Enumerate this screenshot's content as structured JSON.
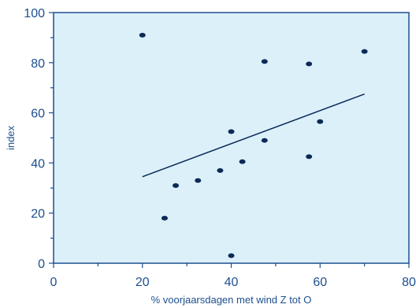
{
  "chart_data": {
    "type": "scatter",
    "xlabel": "% voorjaarsdagen met wind Z tot O",
    "ylabel": "index",
    "xlim": [
      0,
      80
    ],
    "ylim": [
      0,
      100
    ],
    "xticks": [
      0,
      20,
      40,
      60,
      80
    ],
    "yticks": [
      0,
      20,
      40,
      60,
      80,
      100
    ],
    "xticklabels": [
      "0",
      "20",
      "40",
      "60",
      "80"
    ],
    "yticklabels": [
      "0",
      "20",
      "40",
      "60",
      "80",
      "100"
    ],
    "grid": false,
    "points": [
      {
        "x": 20,
        "y": 91
      },
      {
        "x": 25,
        "y": 18
      },
      {
        "x": 27.5,
        "y": 31
      },
      {
        "x": 32.5,
        "y": 33
      },
      {
        "x": 37.5,
        "y": 37
      },
      {
        "x": 40,
        "y": 52.5
      },
      {
        "x": 40,
        "y": 3
      },
      {
        "x": 42.5,
        "y": 40.5
      },
      {
        "x": 47.5,
        "y": 80.5
      },
      {
        "x": 47.5,
        "y": 49
      },
      {
        "x": 57.5,
        "y": 79.5
      },
      {
        "x": 57.5,
        "y": 42.5
      },
      {
        "x": 60,
        "y": 56.5
      },
      {
        "x": 70,
        "y": 84.5
      }
    ],
    "trendline": {
      "x": [
        20,
        70
      ],
      "y": [
        34.5,
        67.5
      ]
    },
    "colors": {
      "plot_background": "#dcf0fa",
      "axis": "#1d4f8f",
      "points": "#0b2a57",
      "trendline": "#0b2a57",
      "text": "#1d4f8f"
    }
  }
}
